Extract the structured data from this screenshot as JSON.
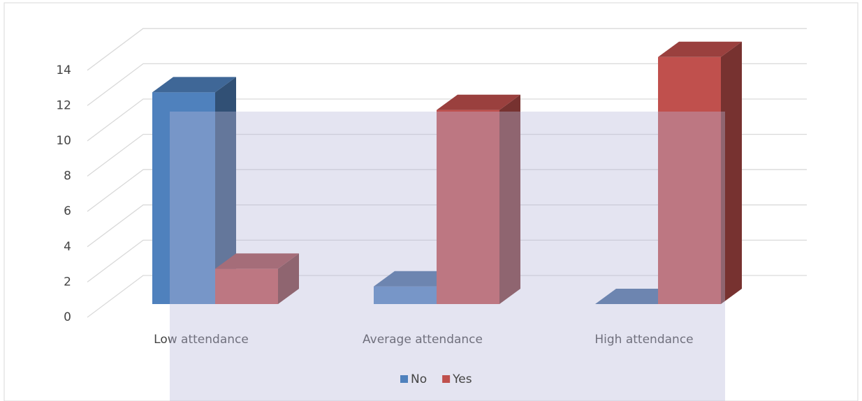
{
  "chart_data": {
    "type": "bar3d",
    "categories": [
      "Low attendance",
      "Average attendance",
      "High attendance"
    ],
    "series": [
      {
        "name": "No",
        "color": "#4f81bd",
        "values": [
          12,
          1,
          0
        ]
      },
      {
        "name": "Yes",
        "color": "#c0504d",
        "values": [
          2,
          11,
          14
        ]
      }
    ],
    "ylim": [
      0,
      14
    ],
    "yticks": [
      0,
      2,
      4,
      6,
      8,
      10,
      12,
      14
    ],
    "grid": true,
    "legend": "bottom"
  }
}
